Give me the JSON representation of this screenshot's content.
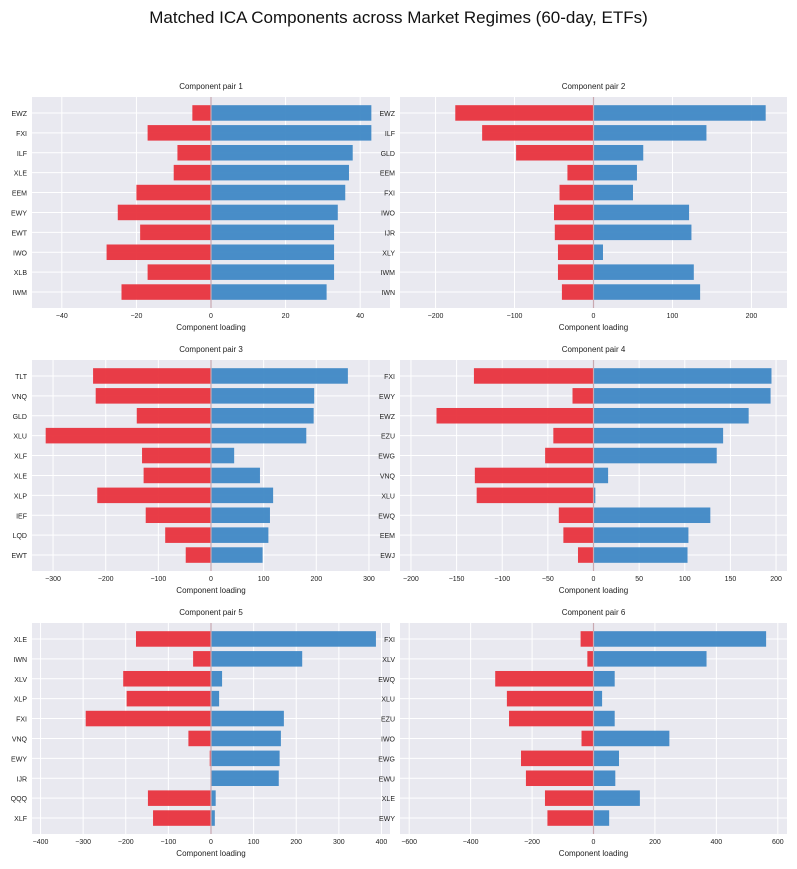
{
  "figure_title": "Matched ICA Components across Market Regimes (60-day, ETFs)",
  "colors": {
    "positive": "#3f88c5",
    "negative": "#e8333d",
    "background": "#e9e9f0",
    "grid": "#ffffff",
    "zero_line": "#c9a9b0"
  },
  "chart_data": [
    {
      "type": "bar",
      "orientation": "horizontal",
      "title": "Component pair 1",
      "xlabel": "Component loading",
      "xlim": [
        -48,
        48
      ],
      "xticks": [
        -40,
        -20,
        0,
        20,
        40
      ],
      "categories": [
        "EWZ",
        "FXI",
        "ILF",
        "XLE",
        "EEM",
        "EWY",
        "EWT",
        "IWO",
        "XLB",
        "IWM"
      ],
      "series": [
        {
          "values": [
            43,
            43,
            38,
            37,
            36,
            34,
            33,
            33,
            33,
            31
          ]
        },
        {
          "values": [
            -5,
            -17,
            -9,
            -10,
            -20,
            -25,
            -19,
            -28,
            -17,
            -24
          ]
        }
      ],
      "grid": true
    },
    {
      "type": "bar",
      "orientation": "horizontal",
      "title": "Component pair 2",
      "xlabel": "Component loading",
      "xlim": [
        -245,
        245
      ],
      "xticks": [
        -200,
        -100,
        0,
        100,
        200
      ],
      "categories": [
        "EWZ",
        "ILF",
        "GLD",
        "EEM",
        "FXI",
        "IWO",
        "IJR",
        "XLY",
        "IWM",
        "IWN"
      ],
      "series": [
        {
          "values": [
            218,
            143,
            63,
            55,
            50,
            -50,
            -49,
            -45,
            -45,
            -40
          ]
        },
        {
          "values": [
            -175,
            -141,
            -98,
            -33,
            -43,
            121,
            124,
            12,
            127,
            135
          ]
        }
      ],
      "grid": true
    },
    {
      "type": "bar",
      "orientation": "horizontal",
      "title": "Component pair 3",
      "xlabel": "Component loading",
      "xlim": [
        -340,
        340
      ],
      "xticks": [
        -300,
        -200,
        -100,
        0,
        100,
        200,
        300
      ],
      "categories": [
        "TLT",
        "VNQ",
        "GLD",
        "XLU",
        "XLF",
        "XLE",
        "XLP",
        "IEF",
        "LQD",
        "EWT"
      ],
      "series": [
        {
          "values": [
            260,
            196,
            195,
            181,
            -131,
            -128,
            118,
            112,
            109,
            98
          ]
        },
        {
          "values": [
            -224,
            -219,
            -141,
            -314,
            44,
            93,
            -216,
            -124,
            -87,
            -48
          ]
        }
      ],
      "grid": true
    },
    {
      "type": "bar",
      "orientation": "horizontal",
      "title": "Component pair 4",
      "xlabel": "Component loading",
      "xlim": [
        -212,
        212
      ],
      "xticks": [
        -200,
        -150,
        -100,
        -50,
        0,
        50,
        100,
        150,
        200
      ],
      "categories": [
        "FXI",
        "EWY",
        "EWZ",
        "EZU",
        "EWG",
        "VNQ",
        "XLU",
        "EWQ",
        "EEM",
        "EWJ"
      ],
      "series": [
        {
          "values": [
            195,
            194,
            -172,
            142,
            135,
            -130,
            -128,
            128,
            104,
            103
          ]
        },
        {
          "values": [
            -131,
            -23,
            170,
            -44,
            -53,
            16,
            2,
            -38,
            -33,
            -17
          ]
        }
      ],
      "grid": true
    },
    {
      "type": "bar",
      "orientation": "horizontal",
      "title": "Component pair 5",
      "xlabel": "Component loading",
      "xlim": [
        -420,
        420
      ],
      "xticks": [
        -400,
        -300,
        -200,
        -100,
        0,
        100,
        200,
        300,
        400
      ],
      "categories": [
        "XLE",
        "IWN",
        "XLV",
        "XLP",
        "FXI",
        "VNQ",
        "EWY",
        "IJR",
        "QQQ",
        "XLF"
      ],
      "series": [
        {
          "values": [
            387,
            214,
            -206,
            -198,
            171,
            164,
            161,
            159,
            -148,
            -136
          ]
        },
        {
          "values": [
            -176,
            -42,
            26,
            19,
            -294,
            -53,
            -3,
            1,
            11,
            9
          ]
        }
      ],
      "grid": true
    },
    {
      "type": "bar",
      "orientation": "horizontal",
      "title": "Component pair 6",
      "xlabel": "Component loading",
      "xlim": [
        -630,
        630
      ],
      "xticks": [
        -600,
        -400,
        -200,
        0,
        200,
        400,
        600
      ],
      "categories": [
        "FXI",
        "XLV",
        "EWQ",
        "XLU",
        "EZU",
        "IWO",
        "EWG",
        "EWU",
        "XLE",
        "EWY"
      ],
      "series": [
        {
          "values": [
            562,
            368,
            -320,
            -282,
            -275,
            247,
            -236,
            -220,
            -158,
            -150
          ]
        },
        {
          "values": [
            -42,
            -20,
            69,
            28,
            69,
            -39,
            83,
            71,
            151,
            51
          ]
        }
      ],
      "grid": true
    }
  ]
}
